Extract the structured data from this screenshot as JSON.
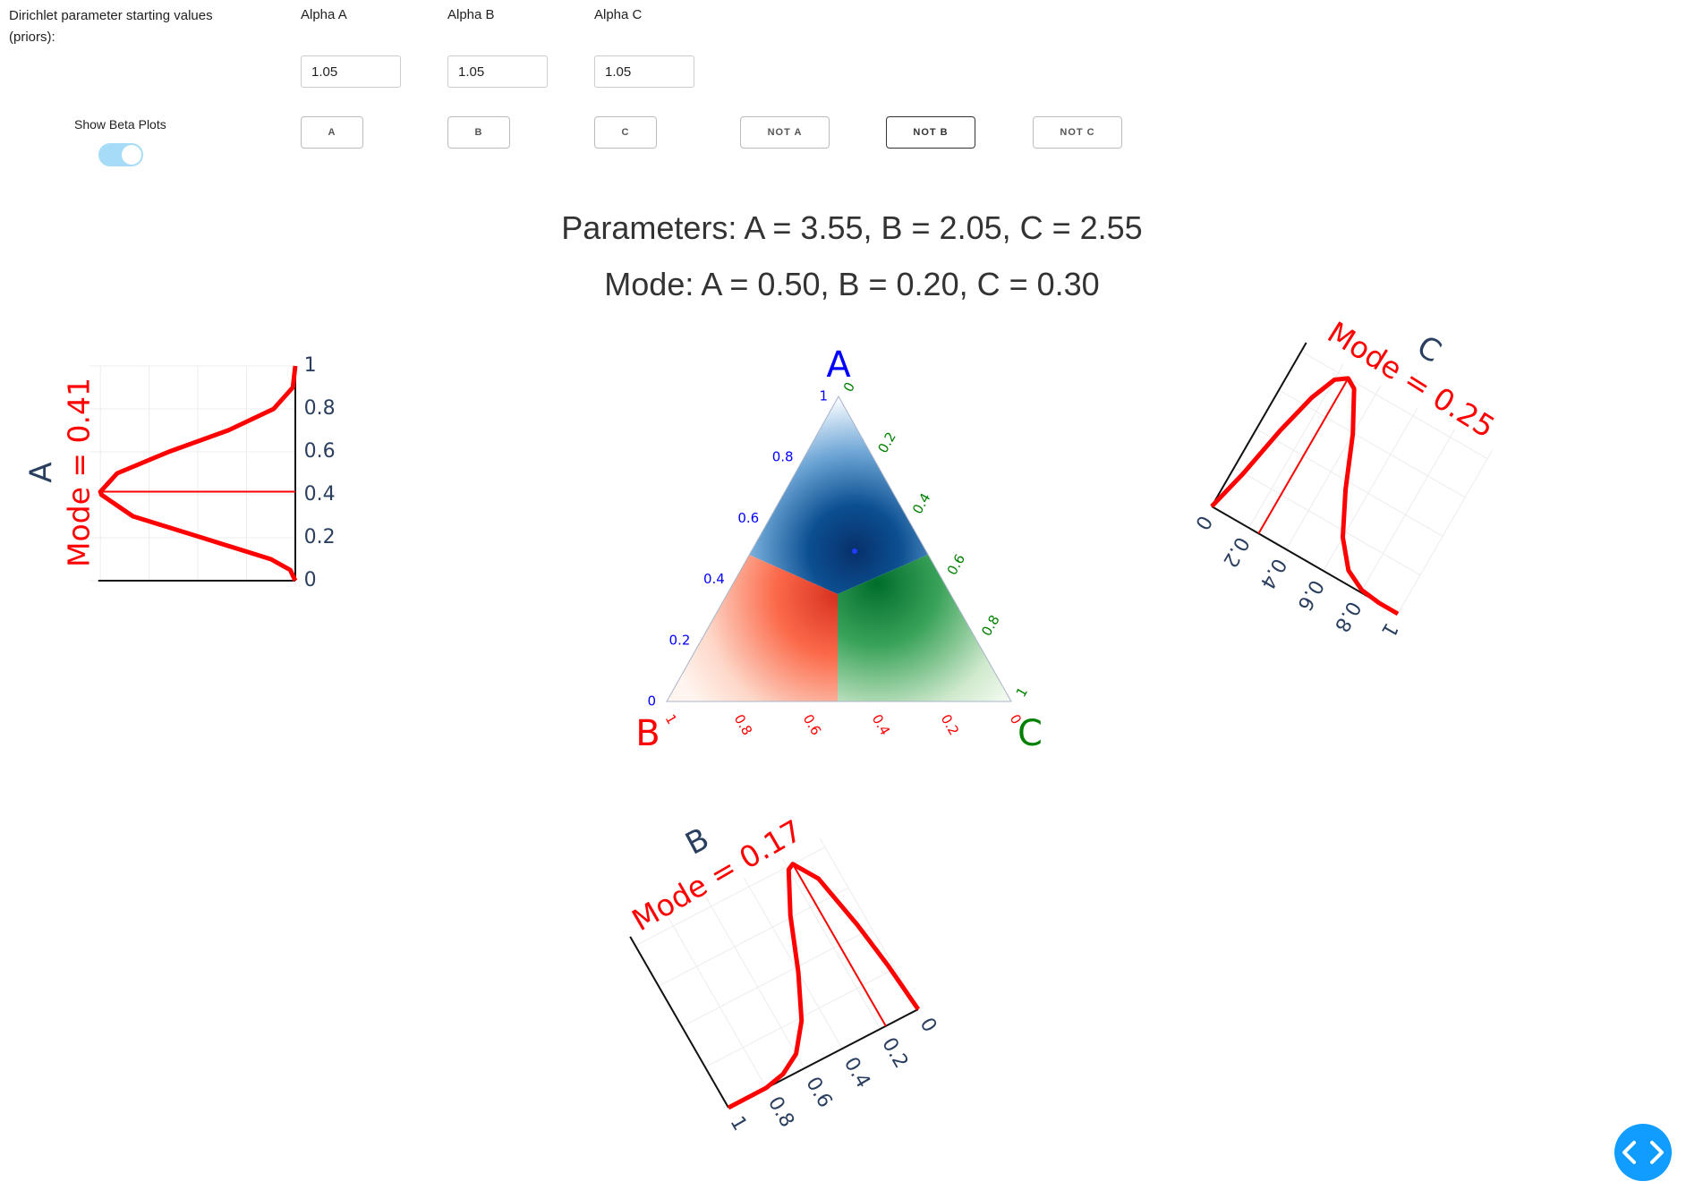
{
  "controls": {
    "prior_label": "Dirichlet parameter starting values (priors):",
    "alphas": [
      {
        "label": "Alpha A",
        "value": "1.05"
      },
      {
        "label": "Alpha B",
        "value": "1.05"
      },
      {
        "label": "Alpha C",
        "value": "1.05"
      }
    ],
    "toggle_label": "Show Beta Plots",
    "buttons": [
      "A",
      "B",
      "C",
      "NOT A",
      "NOT B",
      "NOT C"
    ]
  },
  "summary": {
    "parameters": "Parameters: A = 3.55, B = 2.05, C = 2.55",
    "mode": "Mode: A = 0.50, B = 0.20, C = 0.30"
  },
  "ternary": {
    "axes": [
      {
        "title": "A",
        "ticks": [
          0,
          0.2,
          0.4,
          0.6,
          0.8,
          1
        ]
      },
      {
        "title": "B",
        "ticks": [
          0,
          0.2,
          0.4,
          0.6,
          0.8,
          1
        ]
      },
      {
        "title": "C",
        "ticks": [
          0,
          0.2,
          0.4,
          0.6,
          0.8,
          1
        ]
      }
    ]
  },
  "beta_plots": [
    {
      "title": "A",
      "mode_label": "Mode = 0.41",
      "ticks": [
        0,
        0.2,
        0.4,
        0.6,
        0.8,
        1
      ]
    },
    {
      "title": "B",
      "mode_label": "Mode = 0.17",
      "ticks": [
        0,
        0.2,
        0.4,
        0.6,
        0.8,
        1
      ]
    },
    {
      "title": "C",
      "mode_label": "Mode = 0.25",
      "ticks": [
        0,
        0.2,
        0.4,
        0.6,
        0.8,
        1
      ]
    }
  ]
}
